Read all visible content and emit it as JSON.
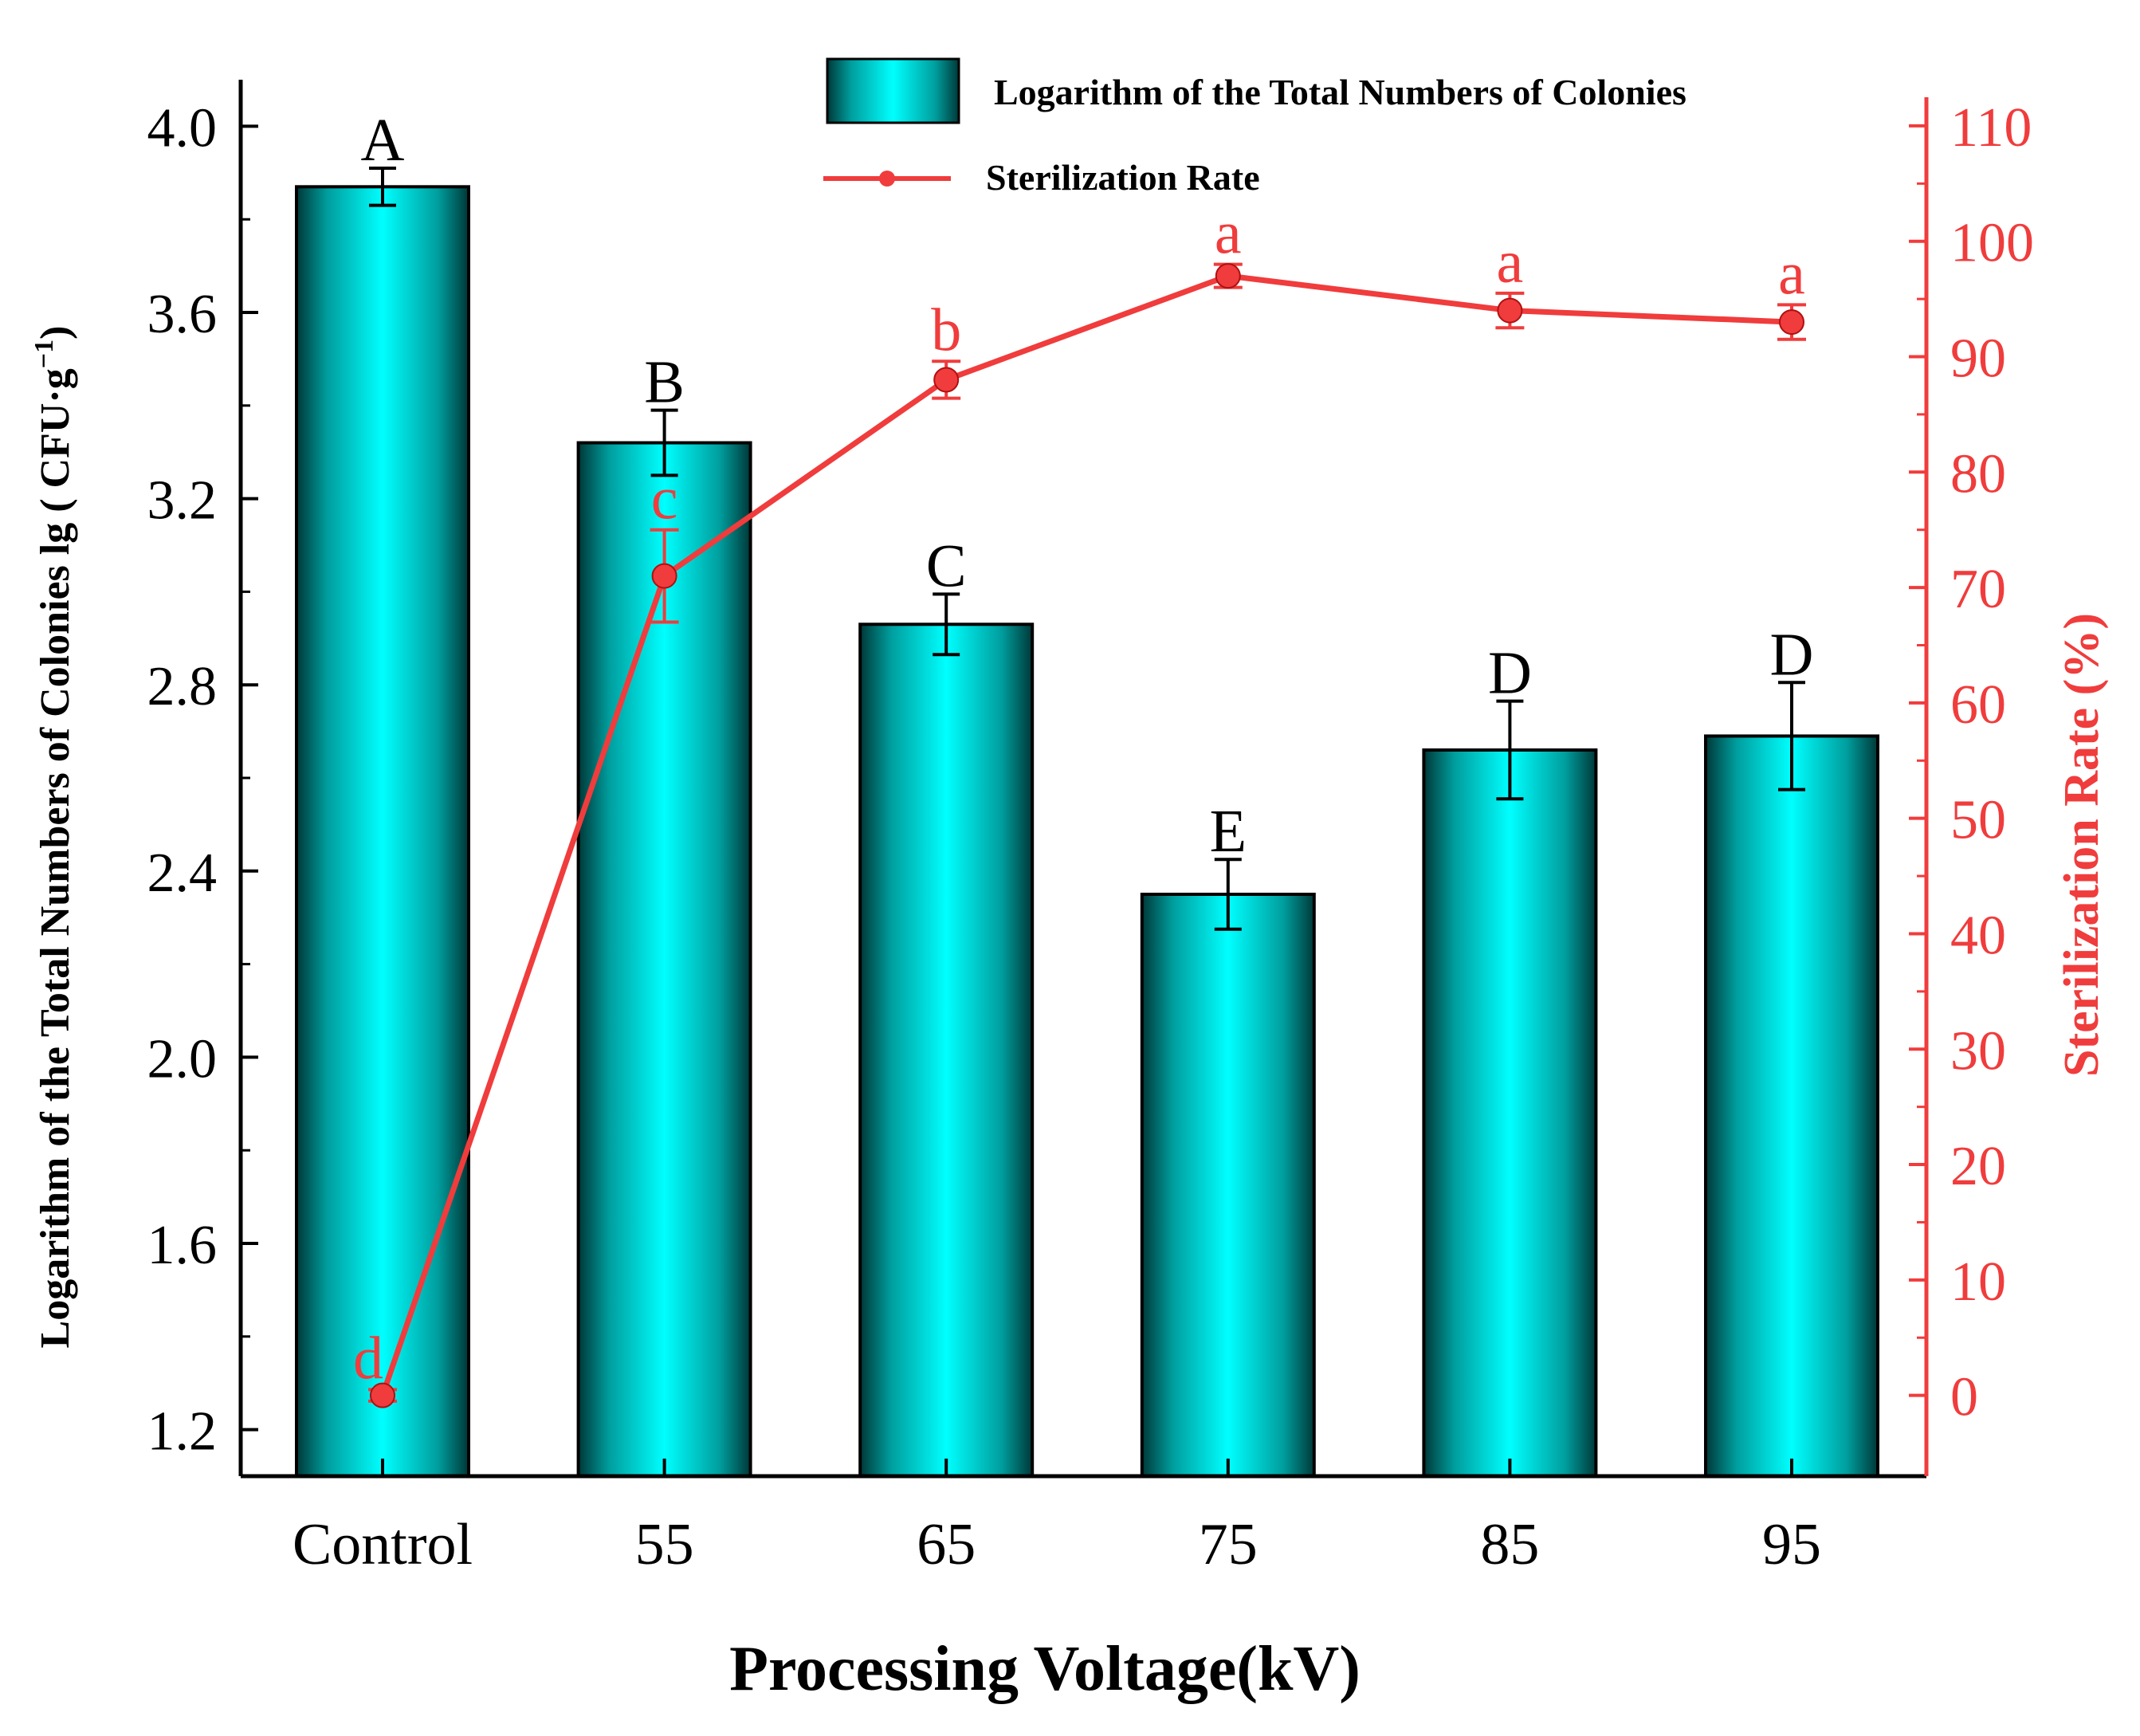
{
  "chart_data": {
    "type": "bar",
    "categories": [
      "Control",
      "55",
      "65",
      "75",
      "85",
      "95"
    ],
    "xlabel": "Processing Voltage(kV)",
    "ylabel": "Logarithm of the Total Numbers of Colonies lg ( CFU·g",
    "ylabel_sup": "−1",
    "ylabel_close": ")",
    "y2label": "Sterilization Rate (%)",
    "ylim": [
      1.1,
      4.1
    ],
    "yticks": [
      "1.2",
      "1.6",
      "2.0",
      "2.4",
      "2.8",
      "3.2",
      "3.6",
      "4.0"
    ],
    "y2lim": [
      -7,
      114
    ],
    "y2ticks": [
      "0",
      "10",
      "20",
      "30",
      "40",
      "50",
      "60",
      "70",
      "80",
      "90",
      "100",
      "110"
    ],
    "series": [
      {
        "name": "Logarithm of the Total Numbers of Colonies",
        "kind": "bar",
        "axis": "left",
        "values": [
          3.87,
          3.32,
          2.93,
          2.35,
          2.66,
          2.69
        ],
        "errors": [
          0.04,
          0.07,
          0.065,
          0.075,
          0.105,
          0.115
        ],
        "labels": [
          "A",
          "B",
          "C",
          "E",
          "D",
          "D"
        ]
      },
      {
        "name": "Sterilization Rate",
        "kind": "line",
        "axis": "right",
        "values": [
          0,
          71,
          88,
          97,
          94,
          93
        ],
        "errors": [
          0.5,
          4,
          1.6,
          1,
          1.5,
          1.5
        ],
        "labels": [
          "d",
          "c",
          "b",
          "a",
          "a",
          "a"
        ]
      }
    ],
    "legend_position": "top-right"
  },
  "colors": {
    "bar_edge": "#000000",
    "bar_mid": "#00ffff",
    "bar_dark": "#003838",
    "line": "#f03c3c",
    "right_axis": "#f03c3c",
    "text": "#000000"
  }
}
